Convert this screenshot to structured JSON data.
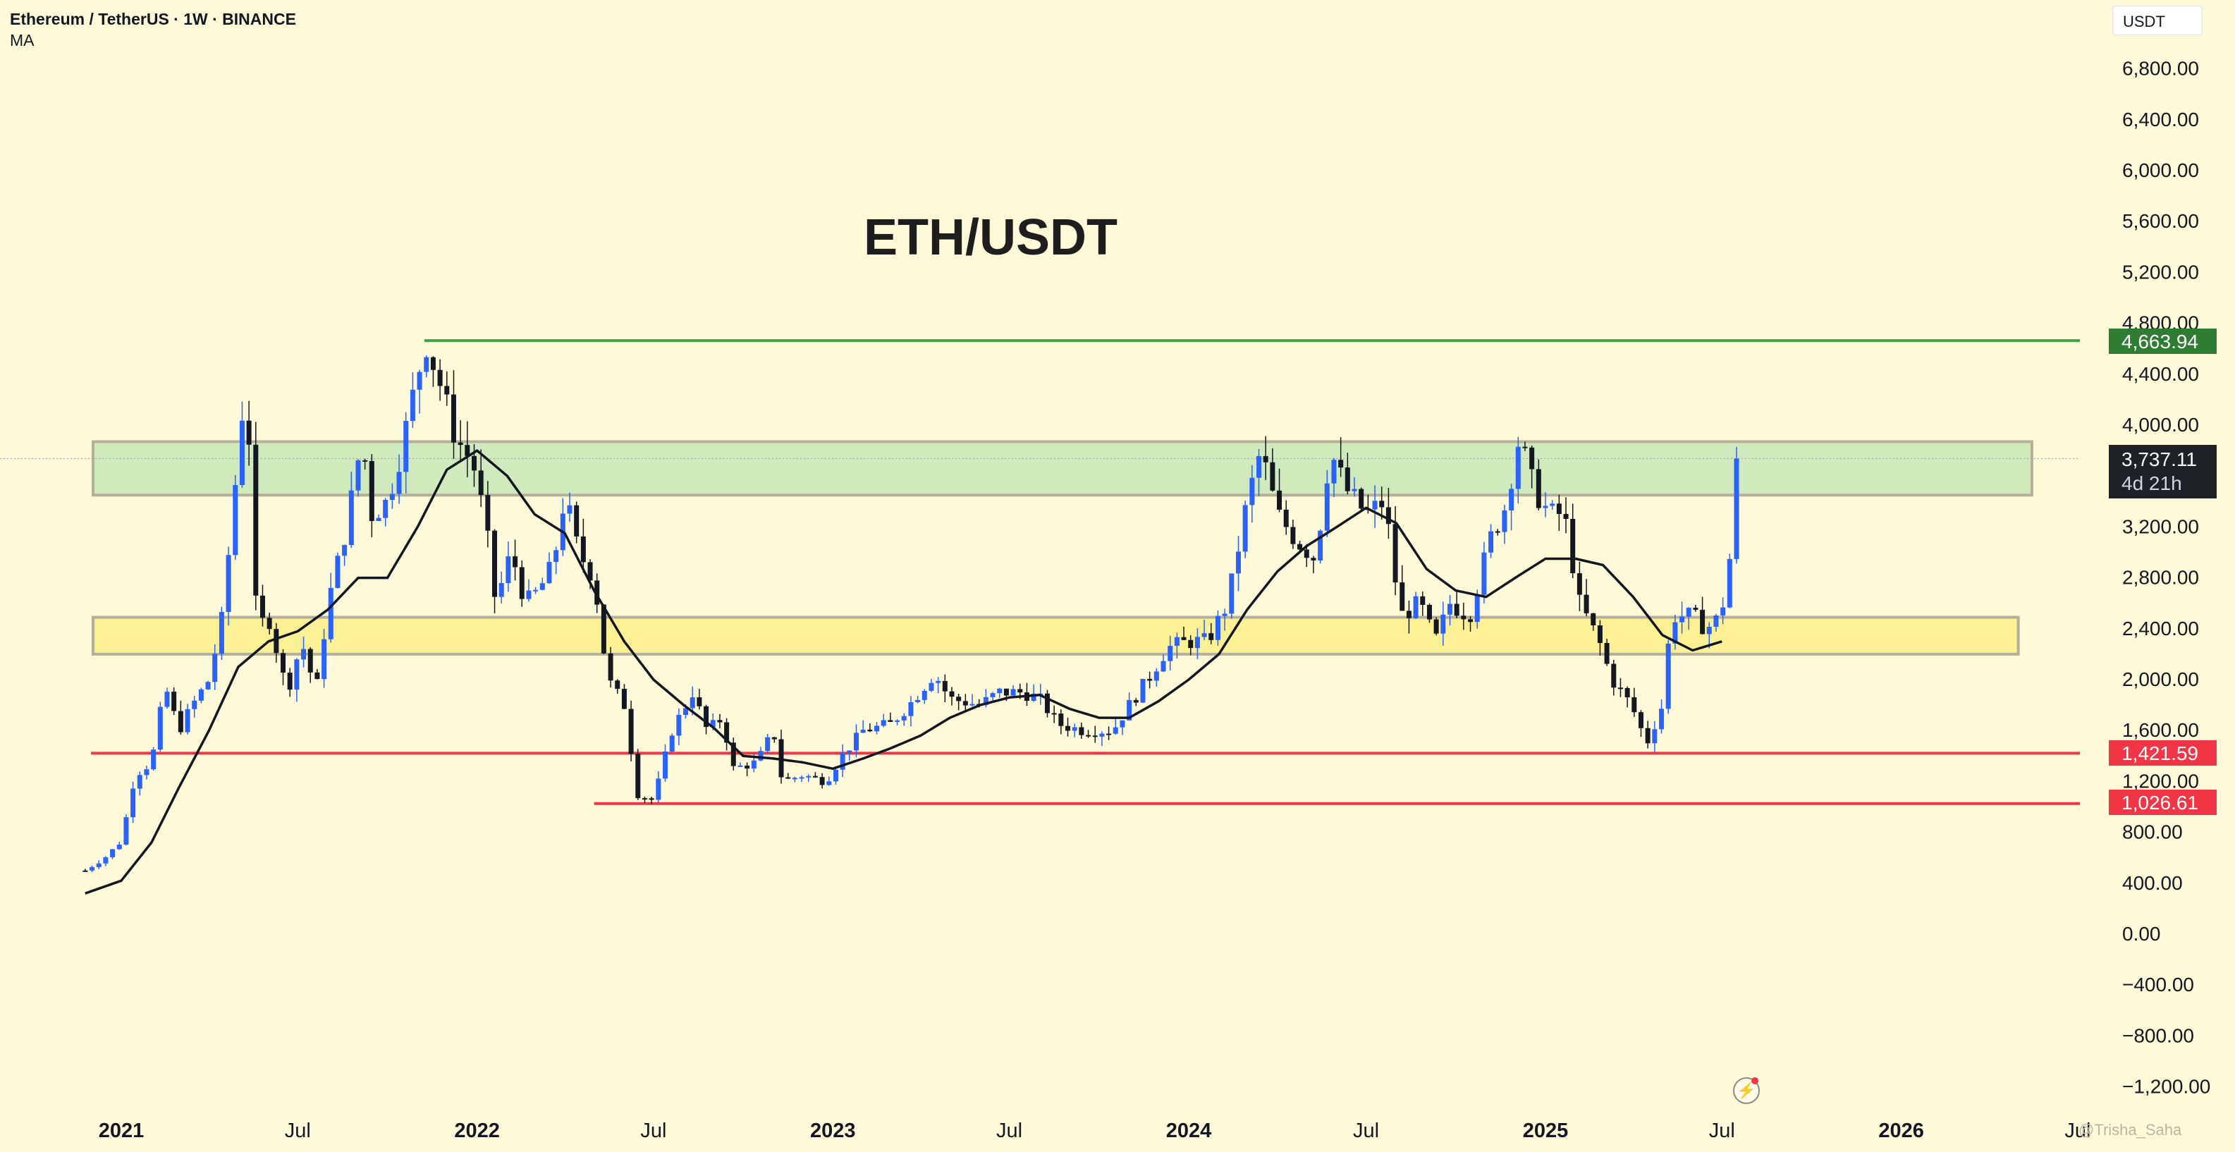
{
  "header": {
    "symbol_line": "Ethereum / TetherUS · 1W · BINANCE",
    "indicator": "MA"
  },
  "unit_label": "USDT",
  "title": "ETH/USDT",
  "price_badges": {
    "resistance": "4,663.94",
    "current_price": "3,737.11",
    "countdown": "4d 21h",
    "support_1": "1,421.59",
    "support_2": "1,026.61"
  },
  "watermark": "@Trisha_Saha",
  "icons": {
    "replay": "lightning-bolt-icon"
  },
  "colors": {
    "background": "#fef9d8",
    "bull_candle": "#2962ff",
    "bear_candle": "#131722",
    "resistance_line": "#43a047",
    "support_line": "#f23645",
    "green_zone": "#c8e6b8",
    "yellow_zone": "#fbee8a",
    "ma_line": "#131722"
  },
  "chart_data": {
    "type": "candlestick",
    "y_ticks": [
      "6,800.00",
      "6,400.00",
      "6,000.00",
      "5,600.00",
      "5,200.00",
      "4,800.00",
      "4,400.00",
      "4,000.00",
      "3,200.00",
      "2,800.00",
      "2,400.00",
      "2,000.00",
      "1,600.00",
      "1,200.00",
      "800.00",
      "400.00",
      "0.00",
      "−400.00",
      "−800.00",
      "−1,200.00"
    ],
    "y_tick_values": [
      6800,
      6400,
      6000,
      5600,
      5200,
      4800,
      4400,
      4000,
      3200,
      2800,
      2400,
      2000,
      1600,
      1200,
      800,
      400,
      0,
      -400,
      -800,
      -1200
    ],
    "x_ticks": [
      "2021",
      "Jul",
      "2022",
      "Jul",
      "2023",
      "Jul",
      "2024",
      "Jul",
      "2025",
      "Jul",
      "2026",
      "Jul"
    ],
    "x_tick_dates": [
      "2021-01-01",
      "2021-07-01",
      "2022-01-01",
      "2022-07-01",
      "2023-01-01",
      "2023-07-01",
      "2024-01-01",
      "2024-07-01",
      "2025-01-01",
      "2025-07-01",
      "2026-01-01",
      "2026-07-01"
    ],
    "ylim": [
      -1400,
      7050
    ],
    "horizontal_levels": [
      {
        "price": 4663.94,
        "color": "green",
        "start": "2021-11-08"
      },
      {
        "price": 1421.59,
        "color": "red",
        "start": "2020-12-01"
      },
      {
        "price": 1026.61,
        "color": "red",
        "start": "2022-05-01"
      }
    ],
    "zones": [
      {
        "color": "green",
        "low": 3450,
        "high": 3870,
        "start": "2021-01-01",
        "end": "2026-05-15"
      },
      {
        "color": "yellow",
        "low": 2200,
        "high": 2490,
        "start": "2021-01-01",
        "end": "2026-05-01"
      }
    ],
    "ma_anchors": [
      [
        "2020-11-25",
        320
      ],
      [
        "2021-01-01",
        420
      ],
      [
        "2021-02-01",
        720
      ],
      [
        "2021-03-01",
        1150
      ],
      [
        "2021-04-01",
        1600
      ],
      [
        "2021-05-01",
        2100
      ],
      [
        "2021-06-01",
        2300
      ],
      [
        "2021-07-01",
        2380
      ],
      [
        "2021-08-01",
        2550
      ],
      [
        "2021-09-01",
        2800
      ],
      [
        "2021-10-01",
        2800
      ],
      [
        "2021-11-01",
        3200
      ],
      [
        "2021-12-01",
        3650
      ],
      [
        "2022-01-01",
        3800
      ],
      [
        "2022-02-01",
        3600
      ],
      [
        "2022-03-01",
        3300
      ],
      [
        "2022-04-01",
        3150
      ],
      [
        "2022-05-01",
        2700
      ],
      [
        "2022-06-01",
        2300
      ],
      [
        "2022-07-01",
        2000
      ],
      [
        "2022-08-01",
        1800
      ],
      [
        "2022-09-01",
        1620
      ],
      [
        "2022-10-01",
        1400
      ],
      [
        "2022-11-01",
        1380
      ],
      [
        "2022-12-01",
        1350
      ],
      [
        "2023-01-01",
        1300
      ],
      [
        "2023-02-01",
        1380
      ],
      [
        "2023-03-01",
        1460
      ],
      [
        "2023-04-01",
        1560
      ],
      [
        "2023-05-01",
        1700
      ],
      [
        "2023-06-01",
        1800
      ],
      [
        "2023-07-01",
        1860
      ],
      [
        "2023-08-01",
        1880
      ],
      [
        "2023-09-01",
        1770
      ],
      [
        "2023-10-01",
        1700
      ],
      [
        "2023-11-01",
        1700
      ],
      [
        "2023-12-01",
        1830
      ],
      [
        "2024-01-01",
        2000
      ],
      [
        "2024-02-01",
        2200
      ],
      [
        "2024-03-01",
        2550
      ],
      [
        "2024-04-01",
        2850
      ],
      [
        "2024-05-01",
        3050
      ],
      [
        "2024-06-01",
        3200
      ],
      [
        "2024-07-01",
        3350
      ],
      [
        "2024-08-01",
        3230
      ],
      [
        "2024-09-01",
        2870
      ],
      [
        "2024-10-01",
        2700
      ],
      [
        "2024-11-01",
        2650
      ],
      [
        "2024-12-01",
        2800
      ],
      [
        "2025-01-01",
        2950
      ],
      [
        "2025-02-01",
        2950
      ],
      [
        "2025-03-01",
        2900
      ],
      [
        "2025-04-01",
        2650
      ],
      [
        "2025-05-01",
        2350
      ],
      [
        "2025-06-01",
        2230
      ],
      [
        "2025-07-01",
        2300
      ]
    ],
    "candle_anchors": [
      [
        "2020-11-25",
        500
      ],
      [
        "2020-12-15",
        600
      ],
      [
        "2021-01-01",
        730
      ],
      [
        "2021-01-15",
        1250
      ],
      [
        "2021-02-01",
        1350
      ],
      [
        "2021-02-15",
        1950
      ],
      [
        "2021-03-01",
        1600
      ],
      [
        "2021-03-15",
        1800
      ],
      [
        "2021-04-01",
        2000
      ],
      [
        "2021-04-15",
        2500
      ],
      [
        "2021-05-05",
        4100
      ],
      [
        "2021-05-12",
        3900
      ],
      [
        "2021-05-20",
        2400
      ],
      [
        "2021-06-01",
        2500
      ],
      [
        "2021-06-20",
        1900
      ],
      [
        "2021-07-05",
        2300
      ],
      [
        "2021-07-20",
        1900
      ],
      [
        "2021-08-01",
        2600
      ],
      [
        "2021-08-20",
        3200
      ],
      [
        "2021-09-05",
        3900
      ],
      [
        "2021-09-15",
        3300
      ],
      [
        "2021-10-01",
        3400
      ],
      [
        "2021-10-15",
        3800
      ],
      [
        "2021-11-01",
        4400
      ],
      [
        "2021-11-10",
        4650
      ],
      [
        "2021-11-25",
        4300
      ],
      [
        "2021-12-10",
        3900
      ],
      [
        "2021-12-28",
        3700
      ],
      [
        "2022-01-10",
        3200
      ],
      [
        "2022-01-20",
        2600
      ],
      [
        "2022-02-05",
        3000
      ],
      [
        "2022-02-20",
        2600
      ],
      [
        "2022-03-05",
        2700
      ],
      [
        "2022-03-20",
        2900
      ],
      [
        "2022-04-01",
        3450
      ],
      [
        "2022-04-15",
        3000
      ],
      [
        "2022-05-01",
        2800
      ],
      [
        "2022-05-15",
        2000
      ],
      [
        "2022-06-01",
        1800
      ],
      [
        "2022-06-15",
        1100
      ],
      [
        "2022-07-01",
        1050
      ],
      [
        "2022-07-20",
        1600
      ],
      [
        "2022-08-10",
        1900
      ],
      [
        "2022-08-25",
        1600
      ],
      [
        "2022-09-10",
        1700
      ],
      [
        "2022-09-20",
        1300
      ],
      [
        "2022-10-15",
        1350
      ],
      [
        "2022-11-01",
        1600
      ],
      [
        "2022-11-10",
        1200
      ],
      [
        "2022-12-01",
        1250
      ],
      [
        "2022-12-25",
        1200
      ],
      [
        "2023-01-10",
        1400
      ],
      [
        "2023-02-01",
        1600
      ],
      [
        "2023-03-01",
        1650
      ],
      [
        "2023-03-20",
        1800
      ],
      [
        "2023-04-15",
        2050
      ],
      [
        "2023-05-01",
        1850
      ],
      [
        "2023-06-01",
        1800
      ],
      [
        "2023-06-20",
        1900
      ],
      [
        "2023-07-15",
        1900
      ],
      [
        "2023-08-01",
        1850
      ],
      [
        "2023-08-20",
        1650
      ],
      [
        "2023-09-15",
        1600
      ],
      [
        "2023-10-15",
        1600
      ],
      [
        "2023-11-01",
        1800
      ],
      [
        "2023-11-20",
        2000
      ],
      [
        "2023-12-10",
        2250
      ],
      [
        "2024-01-01",
        2300
      ],
      [
        "2024-01-20",
        2300
      ],
      [
        "2024-02-10",
        2600
      ],
      [
        "2024-03-01",
        3400
      ],
      [
        "2024-03-15",
        3800
      ],
      [
        "2024-04-01",
        3300
      ],
      [
        "2024-04-20",
        3100
      ],
      [
        "2024-05-10",
        2950
      ],
      [
        "2024-05-25",
        3800
      ],
      [
        "2024-06-10",
        3500
      ],
      [
        "2024-07-01",
        3300
      ],
      [
        "2024-07-20",
        3400
      ],
      [
        "2024-08-05",
        2500
      ],
      [
        "2024-08-25",
        2600
      ],
      [
        "2024-09-10",
        2300
      ],
      [
        "2024-09-25",
        2600
      ],
      [
        "2024-10-15",
        2500
      ],
      [
        "2024-11-05",
        3100
      ],
      [
        "2024-11-20",
        3350
      ],
      [
        "2024-12-05",
        3900
      ],
      [
        "2024-12-20",
        3500
      ],
      [
        "2025-01-05",
        3300
      ],
      [
        "2025-01-20",
        3300
      ],
      [
        "2025-02-05",
        2600
      ],
      [
        "2025-02-25",
        2300
      ],
      [
        "2025-03-10",
        2000
      ],
      [
        "2025-03-30",
        1800
      ],
      [
        "2025-04-15",
        1500
      ],
      [
        "2025-05-01",
        1800
      ],
      [
        "2025-05-10",
        2500
      ],
      [
        "2025-06-01",
        2500
      ],
      [
        "2025-06-15",
        2400
      ],
      [
        "2025-06-30",
        2500
      ],
      [
        "2025-07-10",
        3000
      ],
      [
        "2025-07-17",
        3750
      ]
    ]
  }
}
